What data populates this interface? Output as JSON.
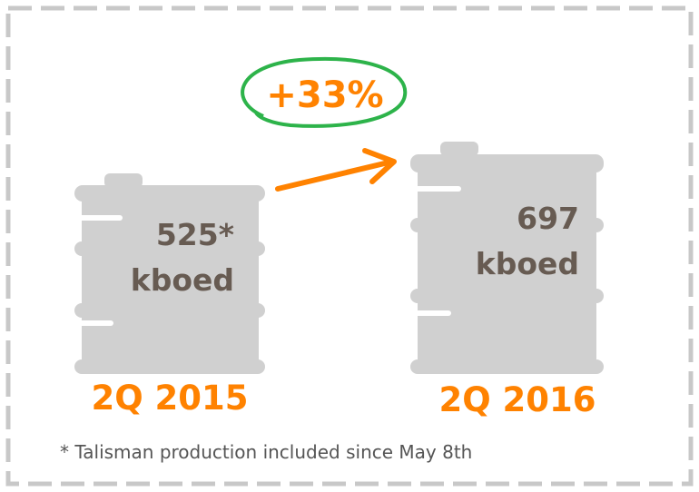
{
  "change": "+33%",
  "items": [
    {
      "value": "525*",
      "unit": "kboed",
      "period": "2Q 2015"
    },
    {
      "value": "697",
      "unit": "kboed",
      "period": "2Q 2016"
    }
  ],
  "footnote": "* Talisman production included since May 8th"
}
